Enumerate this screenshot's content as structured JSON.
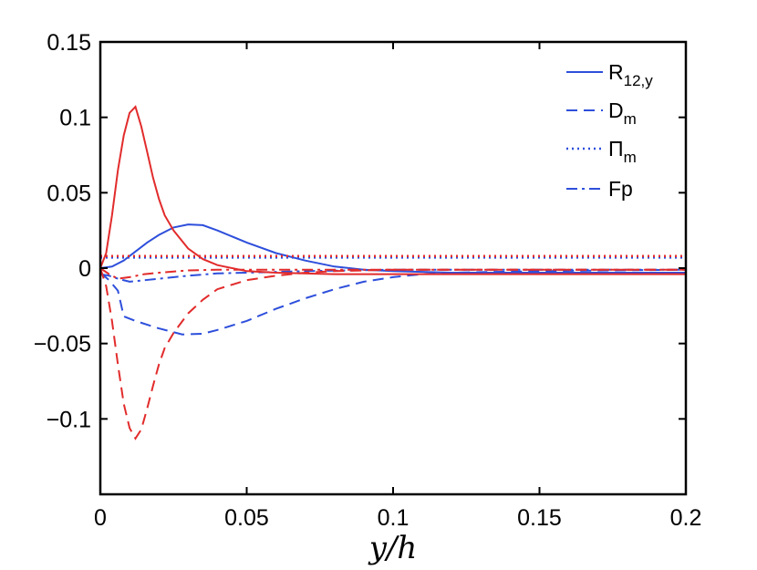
{
  "chart_data": {
    "type": "line",
    "title": "",
    "xlabel": "y/h",
    "ylabel": "",
    "xlim": [
      0,
      0.2
    ],
    "ylim": [
      -0.15,
      0.15
    ],
    "xticks": [
      0,
      0.05,
      0.1,
      0.15,
      0.2
    ],
    "xtick_labels": [
      "0",
      "0.05",
      "0.1",
      "0.15",
      "0.2"
    ],
    "yticks": [
      -0.1,
      -0.05,
      0,
      0.05,
      0.1,
      0.15
    ],
    "ytick_labels": [
      "−0.1",
      "−0.05",
      "0",
      "0.05",
      "0.1",
      "0.15"
    ],
    "grid": false,
    "legend": {
      "position": "top-right",
      "entries": [
        {
          "main": "R",
          "sub": "12,y",
          "style": "solid"
        },
        {
          "main": "D",
          "sub": "m",
          "style": "dashed"
        },
        {
          "main": "Π",
          "sub": "m",
          "style": "dotted"
        },
        {
          "main": "Fp",
          "sub": "",
          "style": "dashdot"
        }
      ]
    },
    "series": [
      {
        "name": "R12,y (blue)",
        "color": "#2e4fdb",
        "style": "solid",
        "x": [
          0,
          0.004,
          0.008,
          0.012,
          0.016,
          0.02,
          0.025,
          0.03,
          0.035,
          0.04,
          0.05,
          0.06,
          0.07,
          0.08,
          0.09,
          0.1,
          0.12,
          0.15,
          0.2
        ],
        "y": [
          0,
          0.001,
          0.005,
          0.011,
          0.017,
          0.022,
          0.027,
          0.029,
          0.0285,
          0.025,
          0.017,
          0.01,
          0.005,
          0.001,
          -0.001,
          -0.002,
          -0.003,
          -0.003,
          -0.003
        ]
      },
      {
        "name": "Dm (blue)",
        "color": "#2e4fdb",
        "style": "dashed",
        "x": [
          0,
          0.003,
          0.006,
          0.008,
          0.012,
          0.02,
          0.028,
          0.035,
          0.04,
          0.05,
          0.06,
          0.07,
          0.08,
          0.09,
          0.1,
          0.11,
          0.12,
          0.15,
          0.2
        ],
        "y": [
          -0.003,
          -0.008,
          -0.015,
          -0.032,
          -0.035,
          -0.04,
          -0.044,
          -0.0435,
          -0.041,
          -0.035,
          -0.027,
          -0.02,
          -0.014,
          -0.009,
          -0.006,
          -0.004,
          -0.003,
          -0.002,
          -0.001
        ]
      },
      {
        "name": "Πm (blue)",
        "color": "#2e4fdb",
        "style": "dotted",
        "x": [
          0,
          0.2
        ],
        "y": [
          0.007,
          0.007
        ]
      },
      {
        "name": "Fp (blue)",
        "color": "#2e4fdb",
        "style": "dashdot",
        "x": [
          0,
          0.003,
          0.006,
          0.01,
          0.02,
          0.03,
          0.04,
          0.05,
          0.07,
          0.1,
          0.15,
          0.2
        ],
        "y": [
          -0.004,
          -0.005,
          -0.007,
          -0.009,
          -0.007,
          -0.005,
          -0.0035,
          -0.003,
          -0.002,
          -0.001,
          -0.001,
          -0.001
        ]
      },
      {
        "name": "R12,y (red)",
        "color": "#e22b2b",
        "style": "solid",
        "x": [
          0,
          0.002,
          0.004,
          0.006,
          0.008,
          0.01,
          0.012,
          0.014,
          0.016,
          0.018,
          0.02,
          0.022,
          0.025,
          0.03,
          0.035,
          0.04,
          0.05,
          0.06,
          0.08,
          0.1,
          0.15,
          0.2
        ],
        "y": [
          0,
          0.01,
          0.035,
          0.065,
          0.088,
          0.103,
          0.107,
          0.094,
          0.077,
          0.06,
          0.046,
          0.035,
          0.025,
          0.013,
          0.006,
          0.002,
          -0.002,
          -0.003,
          -0.004,
          -0.004,
          -0.004,
          -0.004
        ]
      },
      {
        "name": "Dm (red)",
        "color": "#e22b2b",
        "style": "dashed",
        "x": [
          0,
          0.002,
          0.004,
          0.006,
          0.008,
          0.01,
          0.012,
          0.014,
          0.016,
          0.018,
          0.02,
          0.022,
          0.025,
          0.03,
          0.035,
          0.04,
          0.05,
          0.06,
          0.07,
          0.08,
          0.1,
          0.12,
          0.15,
          0.2
        ],
        "y": [
          0,
          -0.012,
          -0.035,
          -0.064,
          -0.09,
          -0.106,
          -0.113,
          -0.107,
          -0.093,
          -0.078,
          -0.064,
          -0.053,
          -0.043,
          -0.03,
          -0.021,
          -0.014,
          -0.008,
          -0.005,
          -0.003,
          -0.002,
          -0.001,
          -0.001,
          -0.001,
          -0.001
        ]
      },
      {
        "name": "Πm (red)",
        "color": "#e22b2b",
        "style": "dotted",
        "x": [
          0,
          0.2
        ],
        "y": [
          0.008,
          0.008
        ]
      },
      {
        "name": "Fp (red)",
        "color": "#e22b2b",
        "style": "dashdot",
        "x": [
          0,
          0.003,
          0.006,
          0.01,
          0.015,
          0.02,
          0.03,
          0.04,
          0.05,
          0.07,
          0.1,
          0.15,
          0.2
        ],
        "y": [
          0,
          -0.004,
          -0.007,
          -0.006,
          -0.004,
          -0.003,
          -0.0015,
          -0.001,
          -0.001,
          -0.001,
          -0.001,
          -0.001,
          -0.001
        ]
      }
    ]
  }
}
